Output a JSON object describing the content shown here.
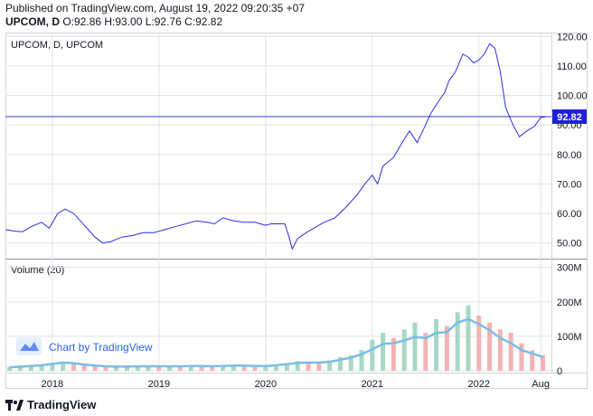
{
  "header": {
    "published": "Published on TradingView.com, August 19, 2022 09:20:35 +07",
    "symbol": "UPCOM, D",
    "ohlc": "O:92.86 H:93.00 L:92.76 C:92.82"
  },
  "watermark": "Chart by TradingView",
  "footer_brand": "TradingView",
  "colors": {
    "price_line": "#2a2ee0",
    "last_price_bg": "#1f1fd8",
    "volume_up": "#a6d9c4",
    "volume_down": "#f4b3b3",
    "volume_ma": "#7bbde8",
    "grid": "#e0e3eb"
  },
  "chart_data": [
    {
      "type": "line",
      "title": "UPCOM, D, UPCOM",
      "last_price_label": "92.82",
      "last_price": 92.82,
      "ylim": [
        45,
        121
      ],
      "y_ticks": [
        50,
        60,
        70,
        80,
        90,
        100,
        110,
        120
      ],
      "y_tick_labels": [
        "50.00",
        "60.00",
        "70.00",
        "80.00",
        "90.00",
        "100.00",
        "110.00",
        "120.00"
      ],
      "x_ticks": [
        2018,
        2019,
        2020,
        2021,
        2022,
        2022.58
      ],
      "x_tick_labels": [
        "2018",
        "2019",
        "2020",
        "2021",
        "2022",
        "Aug"
      ],
      "xlim": [
        2017.56,
        2022.68
      ],
      "x": [
        2017.56,
        2017.65,
        2017.72,
        2017.8,
        2017.9,
        2017.97,
        2018.05,
        2018.12,
        2018.2,
        2018.3,
        2018.4,
        2018.47,
        2018.55,
        2018.65,
        2018.75,
        2018.85,
        2018.95,
        2019.05,
        2019.15,
        2019.25,
        2019.35,
        2019.45,
        2019.52,
        2019.6,
        2019.7,
        2019.8,
        2019.9,
        2020.0,
        2020.05,
        2020.12,
        2020.18,
        2020.22,
        2020.25,
        2020.3,
        2020.38,
        2020.45,
        2020.55,
        2020.65,
        2020.75,
        2020.85,
        2020.93,
        2021.0,
        2021.05,
        2021.1,
        2021.2,
        2021.28,
        2021.35,
        2021.42,
        2021.5,
        2021.55,
        2021.62,
        2021.68,
        2021.72,
        2021.78,
        2021.85,
        2021.9,
        2021.95,
        2022.0,
        2022.05,
        2022.1,
        2022.15,
        2022.2,
        2022.25,
        2022.32,
        2022.38,
        2022.45,
        2022.52,
        2022.58,
        2022.63
      ],
      "y": [
        54.5,
        54,
        53.8,
        55.5,
        57,
        55,
        60,
        61.5,
        60,
        56,
        52,
        50,
        50.5,
        52,
        52.5,
        53.5,
        53.5,
        54.5,
        55.5,
        56.5,
        57.5,
        57,
        56.5,
        58.5,
        57.5,
        57,
        57,
        56,
        56.5,
        56.5,
        56.5,
        52,
        48,
        51.5,
        53.5,
        55,
        57,
        58.5,
        62,
        66,
        70,
        73,
        70,
        76,
        79,
        84,
        88,
        84,
        90,
        94,
        98,
        101,
        105,
        108,
        114,
        113,
        111,
        112,
        114,
        117.5,
        116,
        108,
        96,
        90,
        86,
        88,
        89.5,
        92.5,
        92.8
      ]
    },
    {
      "type": "bar",
      "title": "Volume (20)",
      "ylim": [
        0,
        320
      ],
      "y_ticks": [
        0,
        100,
        200,
        300
      ],
      "y_tick_labels": [
        "0",
        "100M",
        "200M",
        "300M"
      ],
      "y_unit": "M",
      "x": [
        2017.6,
        2017.7,
        2017.8,
        2017.9,
        2018.0,
        2018.1,
        2018.2,
        2018.3,
        2018.4,
        2018.5,
        2018.6,
        2018.7,
        2018.8,
        2018.9,
        2019.0,
        2019.1,
        2019.2,
        2019.3,
        2019.4,
        2019.5,
        2019.6,
        2019.7,
        2019.8,
        2019.9,
        2020.0,
        2020.1,
        2020.2,
        2020.3,
        2020.4,
        2020.5,
        2020.6,
        2020.7,
        2020.8,
        2020.9,
        2021.0,
        2021.1,
        2021.2,
        2021.3,
        2021.4,
        2021.5,
        2021.6,
        2021.7,
        2021.8,
        2021.9,
        2022.0,
        2022.1,
        2022.2,
        2022.3,
        2022.4,
        2022.5,
        2022.6
      ],
      "values": [
        12,
        14,
        16,
        18,
        22,
        25,
        20,
        16,
        14,
        12,
        12,
        13,
        13,
        14,
        13,
        14,
        13,
        15,
        14,
        13,
        16,
        17,
        15,
        14,
        15,
        18,
        22,
        28,
        25,
        24,
        30,
        40,
        45,
        60,
        90,
        110,
        95,
        120,
        140,
        110,
        150,
        130,
        170,
        190,
        160,
        140,
        120,
        110,
        80,
        60,
        45
      ],
      "ma_values": [
        10,
        12,
        14,
        16,
        20,
        24,
        22,
        18,
        15,
        13,
        12,
        12,
        13,
        13,
        13,
        13,
        13,
        14,
        14,
        13,
        14,
        15,
        15,
        14,
        14,
        16,
        19,
        23,
        24,
        24,
        26,
        32,
        38,
        48,
        62,
        78,
        80,
        88,
        98,
        95,
        110,
        112,
        140,
        150,
        135,
        118,
        95,
        80,
        60,
        50,
        40
      ]
    }
  ]
}
